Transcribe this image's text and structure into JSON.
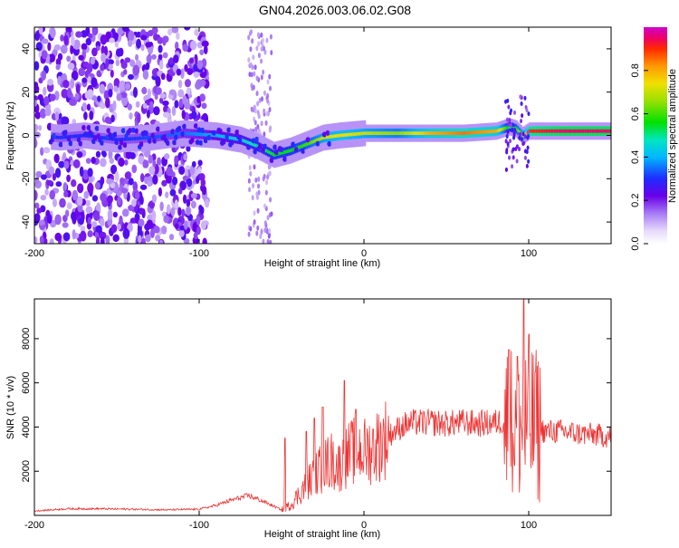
{
  "title": "GN04.2026.003.06.02.G08",
  "chart_data": [
    {
      "type": "heatmap",
      "xlabel": "Height of straight line (km)",
      "ylabel": "Frequency (Hz)",
      "xlim": [
        -200,
        150
      ],
      "ylim": [
        -50,
        50
      ],
      "xticks": [
        -200,
        -100,
        0,
        100
      ],
      "yticks": [
        -40,
        -20,
        0,
        20,
        40
      ],
      "colorbar": {
        "label": "Normalized spectral amplitude",
        "range": [
          0,
          1
        ],
        "ticks": [
          0.0,
          0.2,
          0.4,
          0.6,
          0.8
        ],
        "tick_labels": [
          "0.0",
          "0.2",
          "0.4",
          "0.6",
          "0.8"
        ]
      },
      "ridge": {
        "x": [
          -200,
          -185,
          -170,
          -150,
          -130,
          -110,
          -90,
          -75,
          -65,
          -55,
          -45,
          -35,
          -25,
          -15,
          0,
          20,
          40,
          60,
          80,
          88,
          92,
          96,
          100,
          120,
          150
        ],
        "freq": [
          0,
          -1,
          0,
          -2,
          -1,
          1,
          0,
          -2,
          -5,
          -9,
          -7,
          -4,
          -1,
          0,
          1,
          1,
          1,
          1,
          2,
          4,
          3,
          0,
          2,
          2,
          2
        ],
        "amp": [
          0.25,
          0.3,
          0.3,
          0.3,
          0.32,
          0.35,
          0.4,
          0.45,
          0.5,
          0.55,
          0.55,
          0.6,
          0.7,
          0.75,
          0.7,
          0.65,
          0.8,
          0.85,
          0.8,
          0.5,
          0.6,
          0.7,
          0.9,
          0.95,
          0.95
        ]
      }
    },
    {
      "type": "line",
      "xlabel": "Height of straight line (km)",
      "ylabel": "SNR (10 * v/v)",
      "xlim": [
        -200,
        150
      ],
      "ylim": [
        0,
        9800
      ],
      "xticks": [
        -200,
        -100,
        0,
        100
      ],
      "yticks": [
        2000,
        4000,
        6000,
        8000
      ],
      "color": "#ee3333",
      "series": [
        {
          "name": "SNR",
          "x": [
            -200,
            -180,
            -160,
            -140,
            -120,
            -100,
            -90,
            -80,
            -70,
            -60,
            -50,
            -45,
            -40,
            -35,
            -30,
            -25,
            -20,
            -15,
            -10,
            -5,
            0,
            5,
            10,
            15,
            20,
            25,
            30,
            40,
            50,
            60,
            70,
            80,
            85,
            90,
            95,
            100,
            105,
            110,
            120,
            130,
            140,
            150
          ],
          "y": [
            200,
            300,
            300,
            280,
            250,
            280,
            450,
            700,
            900,
            600,
            250,
            450,
            900,
            1400,
            1800,
            2200,
            2500,
            2200,
            2700,
            3000,
            2900,
            3000,
            3300,
            3600,
            3900,
            4100,
            4200,
            4200,
            4150,
            4200,
            4150,
            4200,
            4300,
            4100,
            4000,
            4200,
            4000,
            3800,
            3800,
            3700,
            3650,
            3550
          ]
        }
      ],
      "spikes": [
        {
          "x": -48,
          "y": 3500
        },
        {
          "x": -35,
          "y": 3800
        },
        {
          "x": -30,
          "y": 4400
        },
        {
          "x": -25,
          "y": 4900
        },
        {
          "x": -12,
          "y": 6100
        },
        {
          "x": -5,
          "y": 4800
        },
        {
          "x": 88,
          "y": 7500
        },
        {
          "x": 93,
          "y": 7200
        },
        {
          "x": 97,
          "y": 9800
        },
        {
          "x": 100,
          "y": 8200
        },
        {
          "x": 104,
          "y": 6500
        }
      ]
    }
  ]
}
